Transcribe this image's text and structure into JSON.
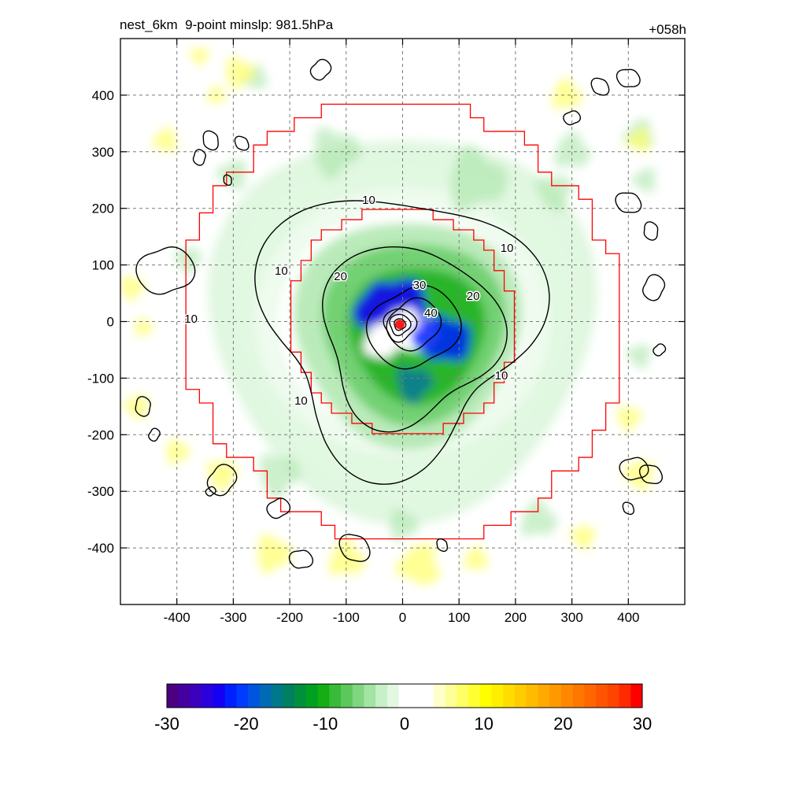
{
  "chart_data": {
    "type": "heatmap",
    "title": "nest_6km  9-point minslp: 981.5hPa",
    "forecast_hour": "+058h",
    "xlim": [
      -500,
      500
    ],
    "ylim": [
      -500,
      500
    ],
    "x_ticks": [
      "-400",
      "-300",
      "-200",
      "-100",
      "0",
      "100",
      "200",
      "300",
      "400"
    ],
    "y_ticks": [
      "400",
      "300",
      "200",
      "100",
      "0",
      "-100",
      "-200",
      "-300",
      "-400"
    ],
    "grid": true,
    "colorbar": {
      "min": -30,
      "max": 30,
      "ticks": [
        "-30",
        "-20",
        "-10",
        "0",
        "10",
        "20",
        "30"
      ],
      "colors": [
        "#4b0082",
        "#4400a0",
        "#3c00bf",
        "#2a00dd",
        "#1400f5",
        "#0020ff",
        "#003cff",
        "#0055e0",
        "#006ab5",
        "#00788c",
        "#008060",
        "#00903c",
        "#00a020",
        "#14ae14",
        "#38bb38",
        "#5cc85c",
        "#80d680",
        "#a3e3a3",
        "#c6f0c6",
        "#e2f8e2",
        "#ffffff",
        "#ffffff",
        "#ffffff",
        "#ffffcc",
        "#ffff99",
        "#ffff66",
        "#ffff33",
        "#ffff00",
        "#ffee00",
        "#ffdd00",
        "#ffcc00",
        "#ffbb00",
        "#ffaa00",
        "#ff9900",
        "#ff8800",
        "#ff7700",
        "#ff6600",
        "#ff5500",
        "#ff4400",
        "#ff2a00",
        "#ff0000"
      ]
    },
    "contour_labels": [
      {
        "text": "10",
        "x": -60,
        "y": 215
      },
      {
        "text": "10",
        "x": 185,
        "y": 130
      },
      {
        "text": "10",
        "x": -215,
        "y": 90
      },
      {
        "text": "10",
        "x": -375,
        "y": 5
      },
      {
        "text": "10",
        "x": 175,
        "y": -95
      },
      {
        "text": "10",
        "x": -180,
        "y": -140
      },
      {
        "text": "20",
        "x": -110,
        "y": 80
      },
      {
        "text": "20",
        "x": 125,
        "y": 45
      },
      {
        "text": "30",
        "x": 30,
        "y": 65
      },
      {
        "text": "40",
        "x": 50,
        "y": 15
      }
    ],
    "storm_center": {
      "x": -5,
      "y": -5
    },
    "inner_nest_radius_km": 200,
    "outer_nest_radius_km": 390
  }
}
